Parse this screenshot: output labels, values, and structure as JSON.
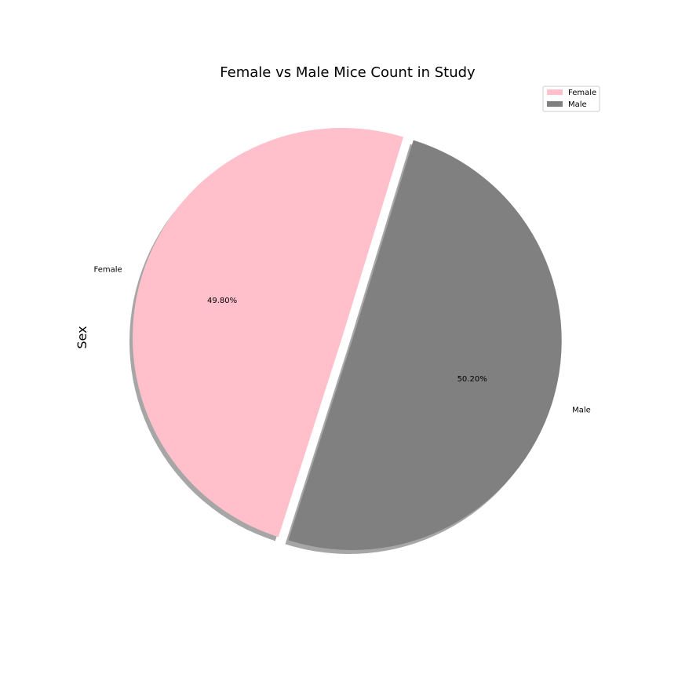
{
  "chart_data": {
    "type": "pie",
    "title": "Female vs Male Mice Count in Study",
    "ylabel": "Sex",
    "labels": [
      "Female",
      "Male"
    ],
    "values": [
      49.8,
      50.2
    ],
    "percent_labels": [
      "49.80%",
      "50.20%"
    ],
    "colors": [
      "#ffc0cb",
      "#808080"
    ],
    "explode": [
      0.0,
      0.05
    ],
    "shadow": true,
    "legend": {
      "placement": "upper right",
      "entries": [
        "Female",
        "Male"
      ]
    }
  }
}
